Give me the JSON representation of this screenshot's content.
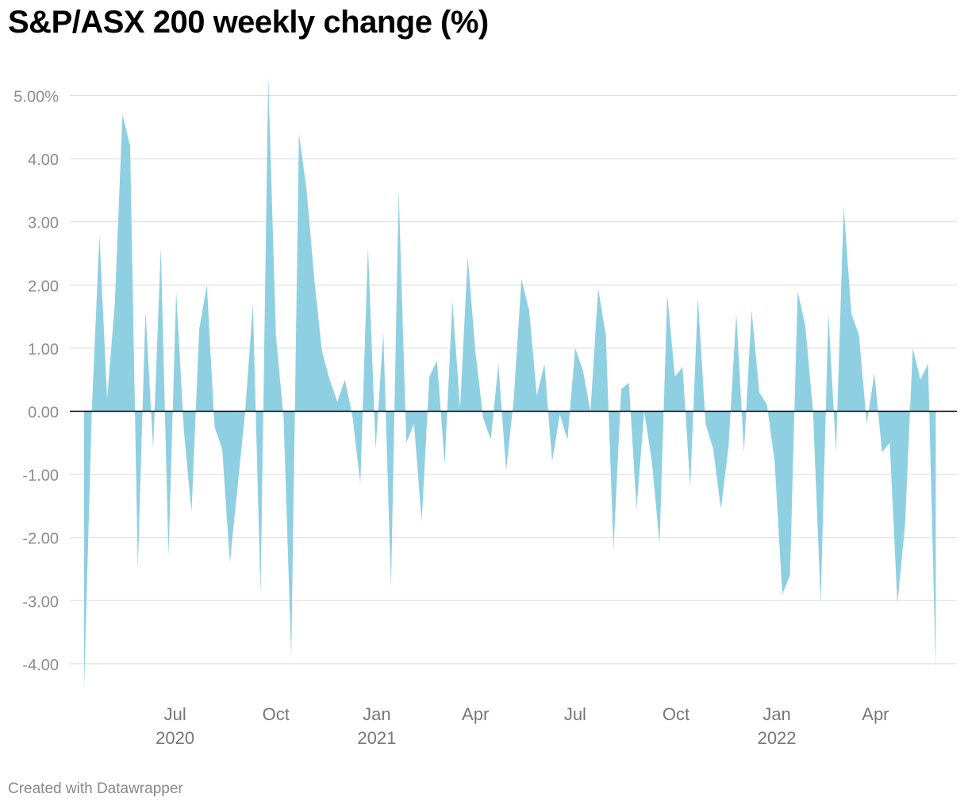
{
  "title": "S&P/ASX 200 weekly change (%)",
  "footer": "Created with Datawrapper",
  "chart_data": {
    "type": "area",
    "title": "S&P/ASX 200 weekly change (%)",
    "xlabel": "",
    "ylabel": "",
    "ylim": [
      -4.5,
      5.3
    ],
    "y_ticks": [
      5,
      4,
      3,
      2,
      1,
      0,
      -1,
      -2,
      -3,
      -4
    ],
    "y_tick_labels": [
      "5.00%",
      "4.00",
      "3.00",
      "2.00",
      "1.00",
      "0.00",
      "-1.00",
      "-2.00",
      "-3.00",
      "-4.00"
    ],
    "x_ticks": [
      {
        "date": "2020-07-01",
        "label": "Jul",
        "year": "2020"
      },
      {
        "date": "2020-10-01",
        "label": "Oct",
        "year": ""
      },
      {
        "date": "2021-01-01",
        "label": "Jan",
        "year": "2021"
      },
      {
        "date": "2021-04-01",
        "label": "Apr",
        "year": ""
      },
      {
        "date": "2021-07-01",
        "label": "Jul",
        "year": ""
      },
      {
        "date": "2021-10-01",
        "label": "Oct",
        "year": ""
      },
      {
        "date": "2022-01-01",
        "label": "Jan",
        "year": "2022"
      },
      {
        "date": "2022-04-01",
        "label": "Apr",
        "year": ""
      }
    ],
    "grid": true,
    "fill_color": "#8fcfe2",
    "zero_line_color": "#000000",
    "series": [
      {
        "x_start": "2020-04-09",
        "x_step_days": 7,
        "values": [
          -4.4,
          0.0,
          2.8,
          0.2,
          1.7,
          4.7,
          4.2,
          -2.5,
          1.6,
          -0.6,
          2.6,
          -2.3,
          1.9,
          -0.3,
          -1.6,
          1.3,
          2.0,
          -0.25,
          -0.6,
          -2.4,
          -1.2,
          0.0,
          1.7,
          -2.9,
          5.3,
          1.2,
          -0.1,
          -3.9,
          4.4,
          3.5,
          2.1,
          0.95,
          0.5,
          0.15,
          0.5,
          -0.1,
          -1.15,
          2.6,
          -0.6,
          1.25,
          -2.8,
          3.5,
          -0.5,
          -0.2,
          -1.75,
          0.55,
          0.8,
          -0.85,
          1.75,
          0.05,
          2.45,
          0.95,
          -0.1,
          -0.45,
          0.75,
          -0.95,
          0.2,
          2.1,
          1.6,
          0.25,
          0.75,
          -0.8,
          -0.05,
          -0.45,
          1.0,
          0.65,
          0.0,
          1.95,
          1.2,
          -2.2,
          0.35,
          0.45,
          -1.55,
          0.0,
          -0.8,
          -2.1,
          1.85,
          0.55,
          0.7,
          -1.2,
          1.8,
          -0.2,
          -0.6,
          -1.55,
          -0.55,
          1.55,
          -0.65,
          1.6,
          0.3,
          0.1,
          -0.8,
          -2.9,
          -2.6,
          1.9,
          1.35,
          0.0,
          -3.05,
          1.55,
          -0.65,
          3.25,
          1.55,
          1.2,
          -0.2,
          0.6,
          -0.65,
          -0.5,
          -3.05,
          -1.8,
          1.0,
          0.5,
          0.75,
          -4.1
        ]
      }
    ]
  }
}
